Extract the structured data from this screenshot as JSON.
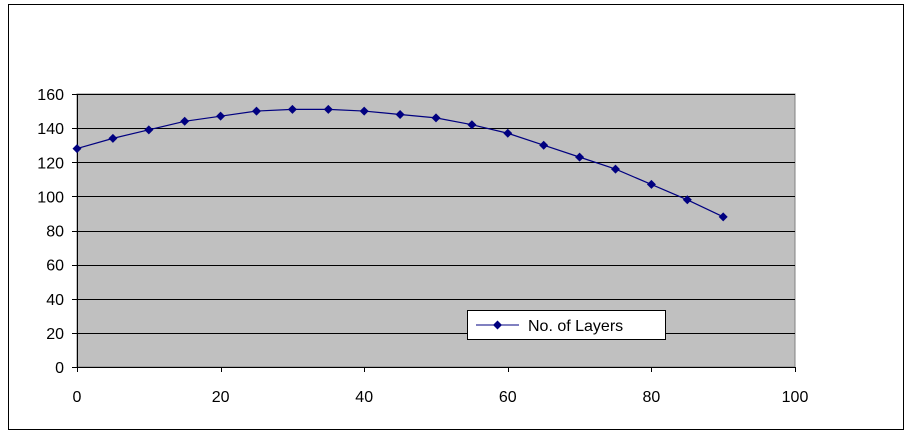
{
  "chart_data": {
    "type": "line",
    "title": "",
    "xlabel": "",
    "ylabel": "",
    "xlim": [
      0,
      100
    ],
    "ylim": [
      0,
      160
    ],
    "xticks": [
      0,
      20,
      40,
      60,
      80,
      100
    ],
    "yticks": [
      0,
      20,
      40,
      60,
      80,
      100,
      120,
      140,
      160
    ],
    "grid": {
      "horizontal": true,
      "vertical": false
    },
    "legend": {
      "placement": "bottom-right-inside",
      "entries": [
        "No. of  Layers"
      ]
    },
    "colors": {
      "series": "#000080",
      "plot_background": "#c0c0c0",
      "gridline": "#000000"
    },
    "series": [
      {
        "name": "No. of  Layers",
        "marker": "diamond",
        "x": [
          0,
          5,
          10,
          15,
          20,
          25,
          30,
          35,
          40,
          45,
          50,
          55,
          60,
          65,
          70,
          75,
          80,
          85,
          90
        ],
        "values": [
          128,
          134,
          139,
          144,
          147,
          150,
          151,
          151,
          150,
          148,
          146,
          142,
          137,
          130,
          123,
          116,
          107,
          98,
          88
        ]
      }
    ]
  }
}
